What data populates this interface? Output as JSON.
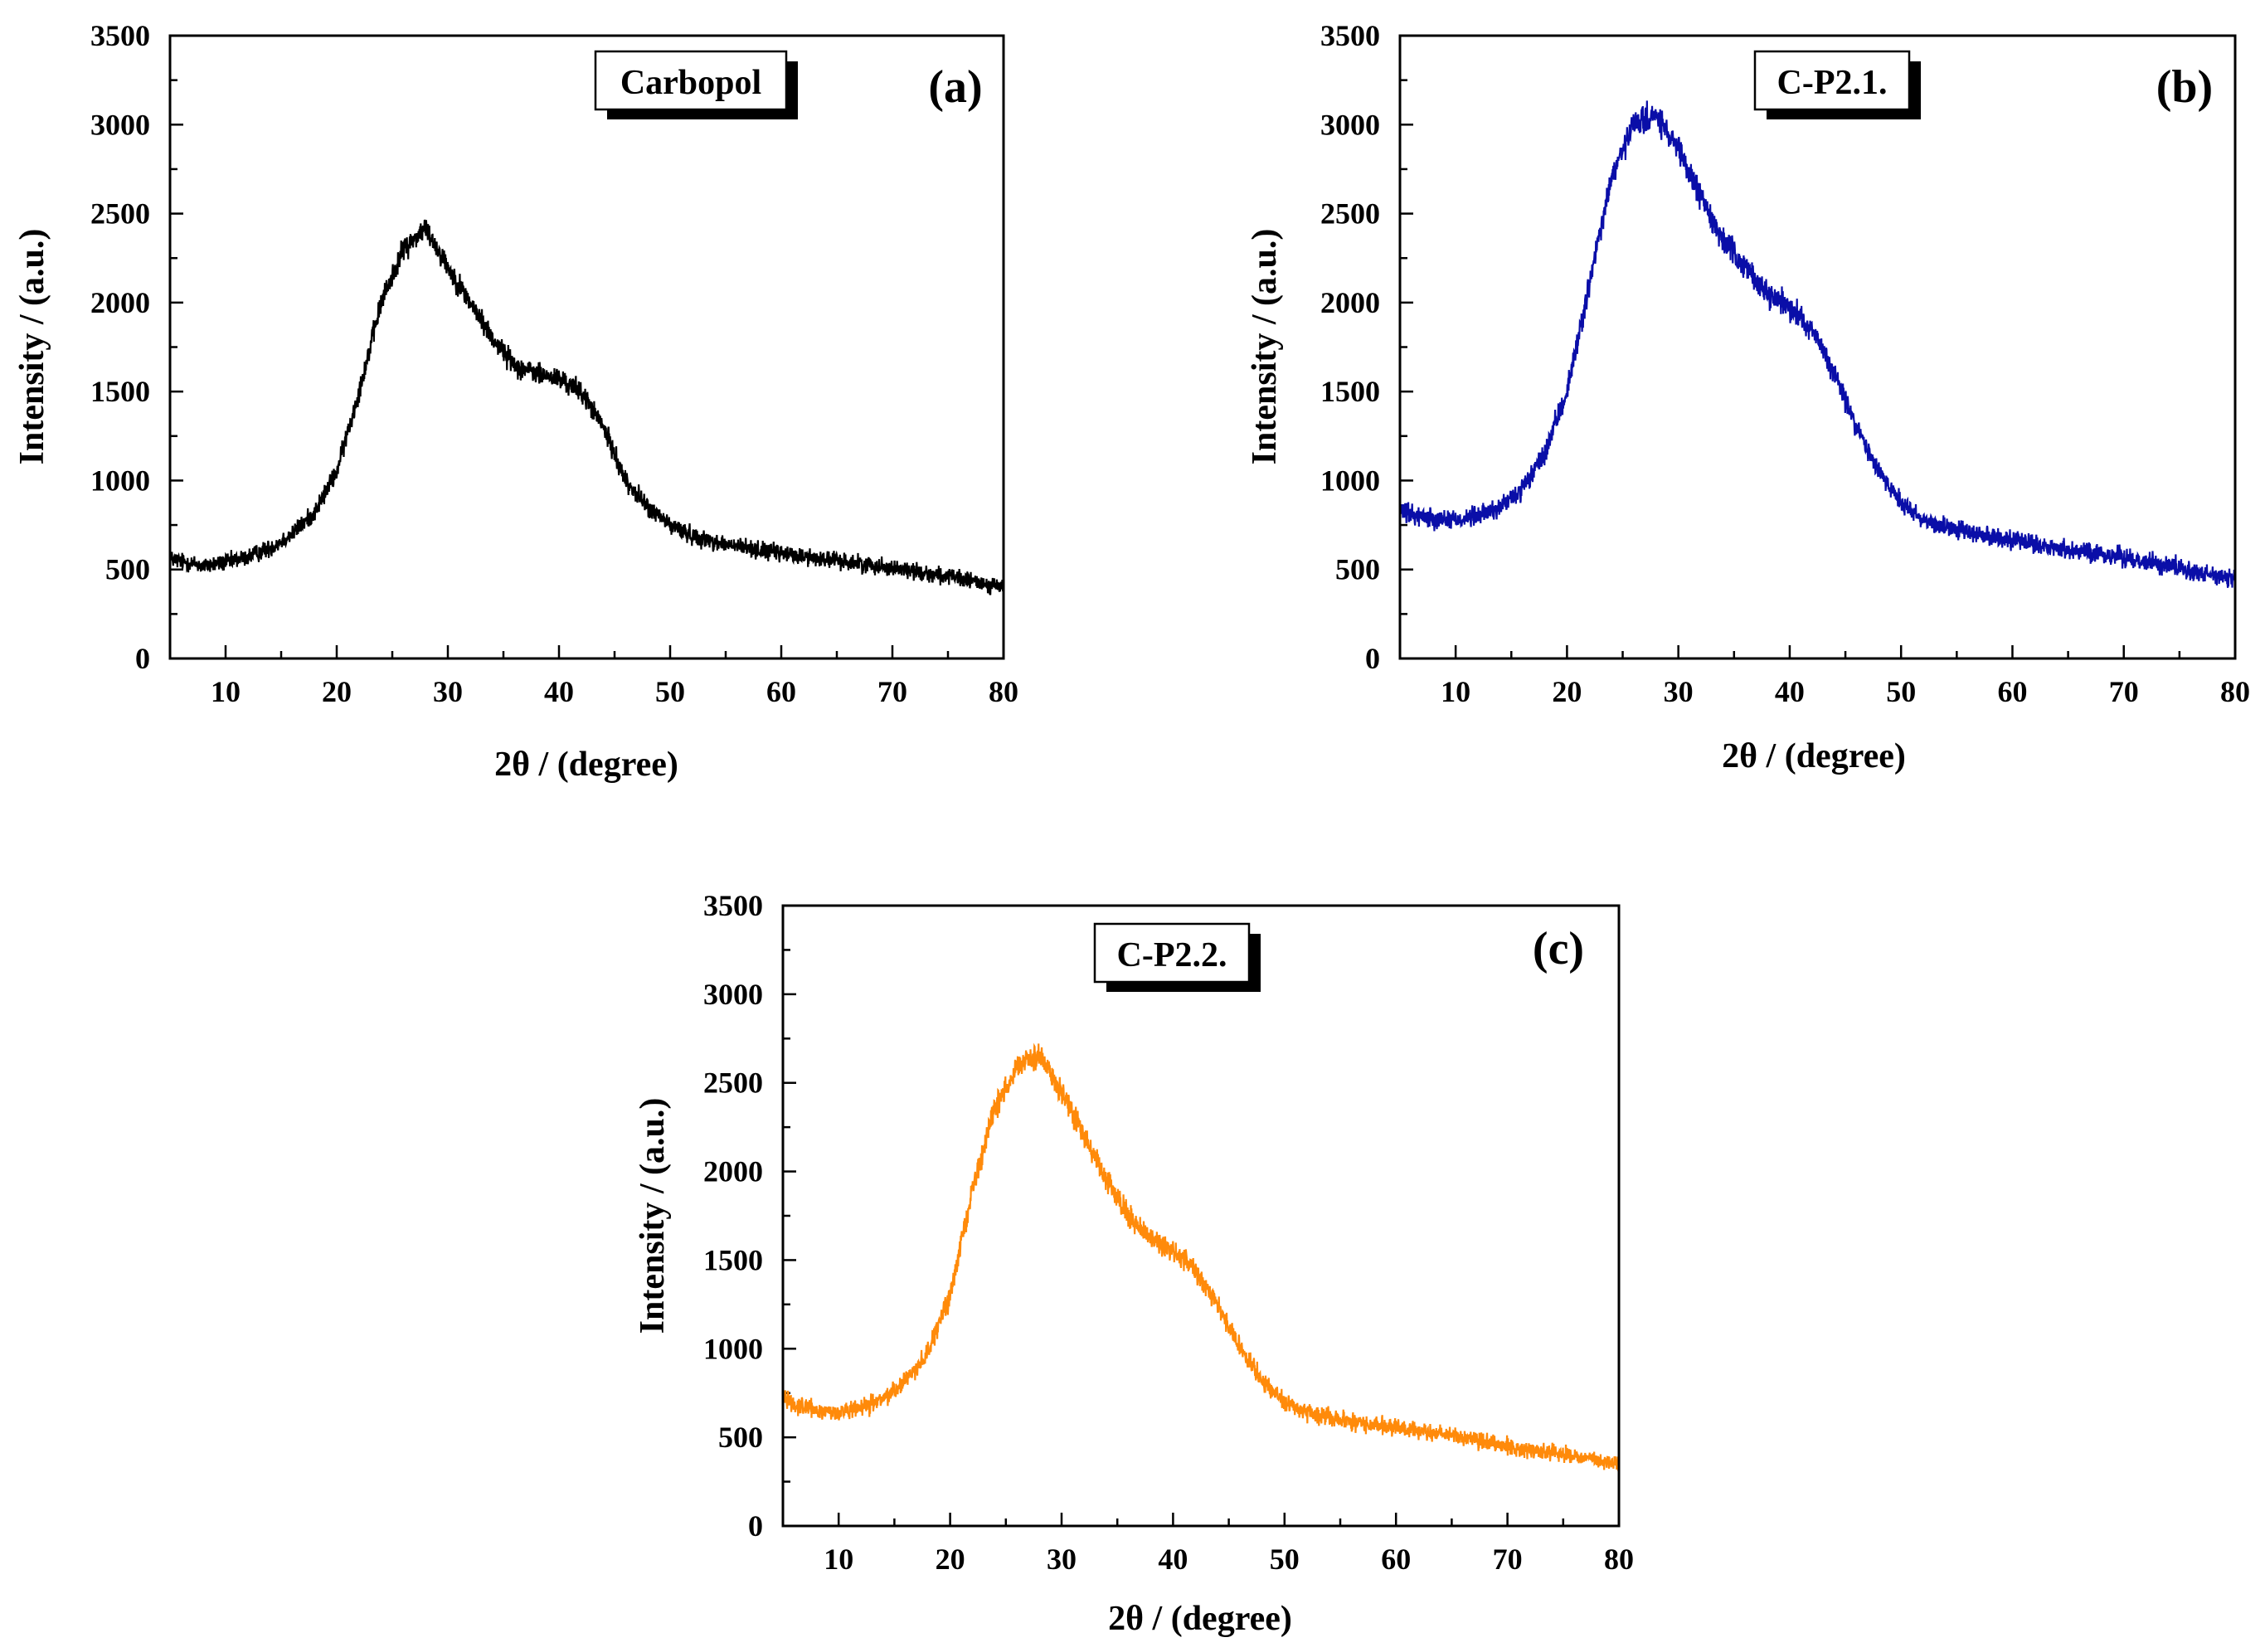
{
  "chart_data": [
    {
      "type": "line",
      "panel_label": "(a)",
      "legend": "Carbopol",
      "color": "#000000",
      "xlabel": "2θ / (degree)",
      "ylabel": "Intensity / (a.u.)",
      "xlim": [
        5,
        80
      ],
      "ylim": [
        0,
        3500
      ],
      "xticks": [
        10,
        20,
        30,
        40,
        50,
        60,
        70,
        80
      ],
      "yticks": [
        0,
        500,
        1000,
        1500,
        2000,
        2500,
        3000,
        3500
      ],
      "noise": 55,
      "series": [
        {
          "x": [
            5,
            8,
            10,
            12,
            14,
            16,
            18,
            20,
            22,
            24,
            26,
            28,
            30,
            32,
            34,
            36,
            38,
            40,
            42,
            44,
            46,
            48,
            50,
            52,
            55,
            58,
            60,
            65,
            70,
            75,
            80
          ],
          "values": [
            560,
            520,
            540,
            570,
            620,
            700,
            820,
            1050,
            1500,
            2000,
            2300,
            2420,
            2200,
            2000,
            1800,
            1650,
            1600,
            1570,
            1500,
            1300,
            1000,
            850,
            750,
            690,
            640,
            610,
            590,
            550,
            510,
            460,
            400
          ]
        }
      ]
    },
    {
      "type": "line",
      "panel_label": "(b)",
      "legend": "C-P2.1.",
      "color": "#0a0ea8",
      "xlabel": "2θ / (degree)",
      "ylabel": "Intensity / (a.u.)",
      "xlim": [
        5,
        80
      ],
      "ylim": [
        0,
        3500
      ],
      "xticks": [
        10,
        20,
        30,
        40,
        50,
        60,
        70,
        80
      ],
      "yticks": [
        0,
        500,
        1000,
        1500,
        2000,
        2500,
        3000,
        3500
      ],
      "noise": 60,
      "series": [
        {
          "x": [
            5,
            8,
            10,
            12,
            14,
            16,
            18,
            20,
            22,
            24,
            26,
            28,
            30,
            32,
            34,
            36,
            38,
            40,
            42,
            44,
            46,
            48,
            50,
            52,
            55,
            58,
            60,
            65,
            70,
            75,
            80
          ],
          "values": [
            820,
            790,
            780,
            800,
            850,
            950,
            1150,
            1500,
            2100,
            2700,
            3000,
            3050,
            2850,
            2600,
            2350,
            2200,
            2050,
            1980,
            1850,
            1600,
            1300,
            1050,
            880,
            780,
            720,
            690,
            660,
            610,
            570,
            510,
            440
          ]
        }
      ]
    },
    {
      "type": "line",
      "panel_label": "(c)",
      "legend": "C-P2.2.",
      "color": "#ff8a0a",
      "xlabel": "2θ / (degree)",
      "ylabel": "Intensity / (a.u.)",
      "xlim": [
        5,
        80
      ],
      "ylim": [
        0,
        3500
      ],
      "xticks": [
        10,
        20,
        30,
        40,
        50,
        60,
        70,
        80
      ],
      "yticks": [
        0,
        500,
        1000,
        1500,
        2000,
        2500,
        3000,
        3500
      ],
      "noise": 55,
      "series": [
        {
          "x": [
            5,
            6,
            8,
            10,
            12,
            14,
            16,
            18,
            20,
            22,
            24,
            26,
            28,
            30,
            32,
            34,
            36,
            38,
            40,
            42,
            44,
            46,
            48,
            50,
            52,
            55,
            58,
            60,
            65,
            70,
            75,
            80
          ],
          "values": [
            740,
            690,
            650,
            640,
            660,
            720,
            820,
            980,
            1300,
            1900,
            2350,
            2600,
            2650,
            2450,
            2200,
            1950,
            1750,
            1620,
            1550,
            1450,
            1250,
            1000,
            820,
            700,
            640,
            600,
            570,
            550,
            510,
            450,
            400,
            350
          ]
        }
      ]
    }
  ]
}
